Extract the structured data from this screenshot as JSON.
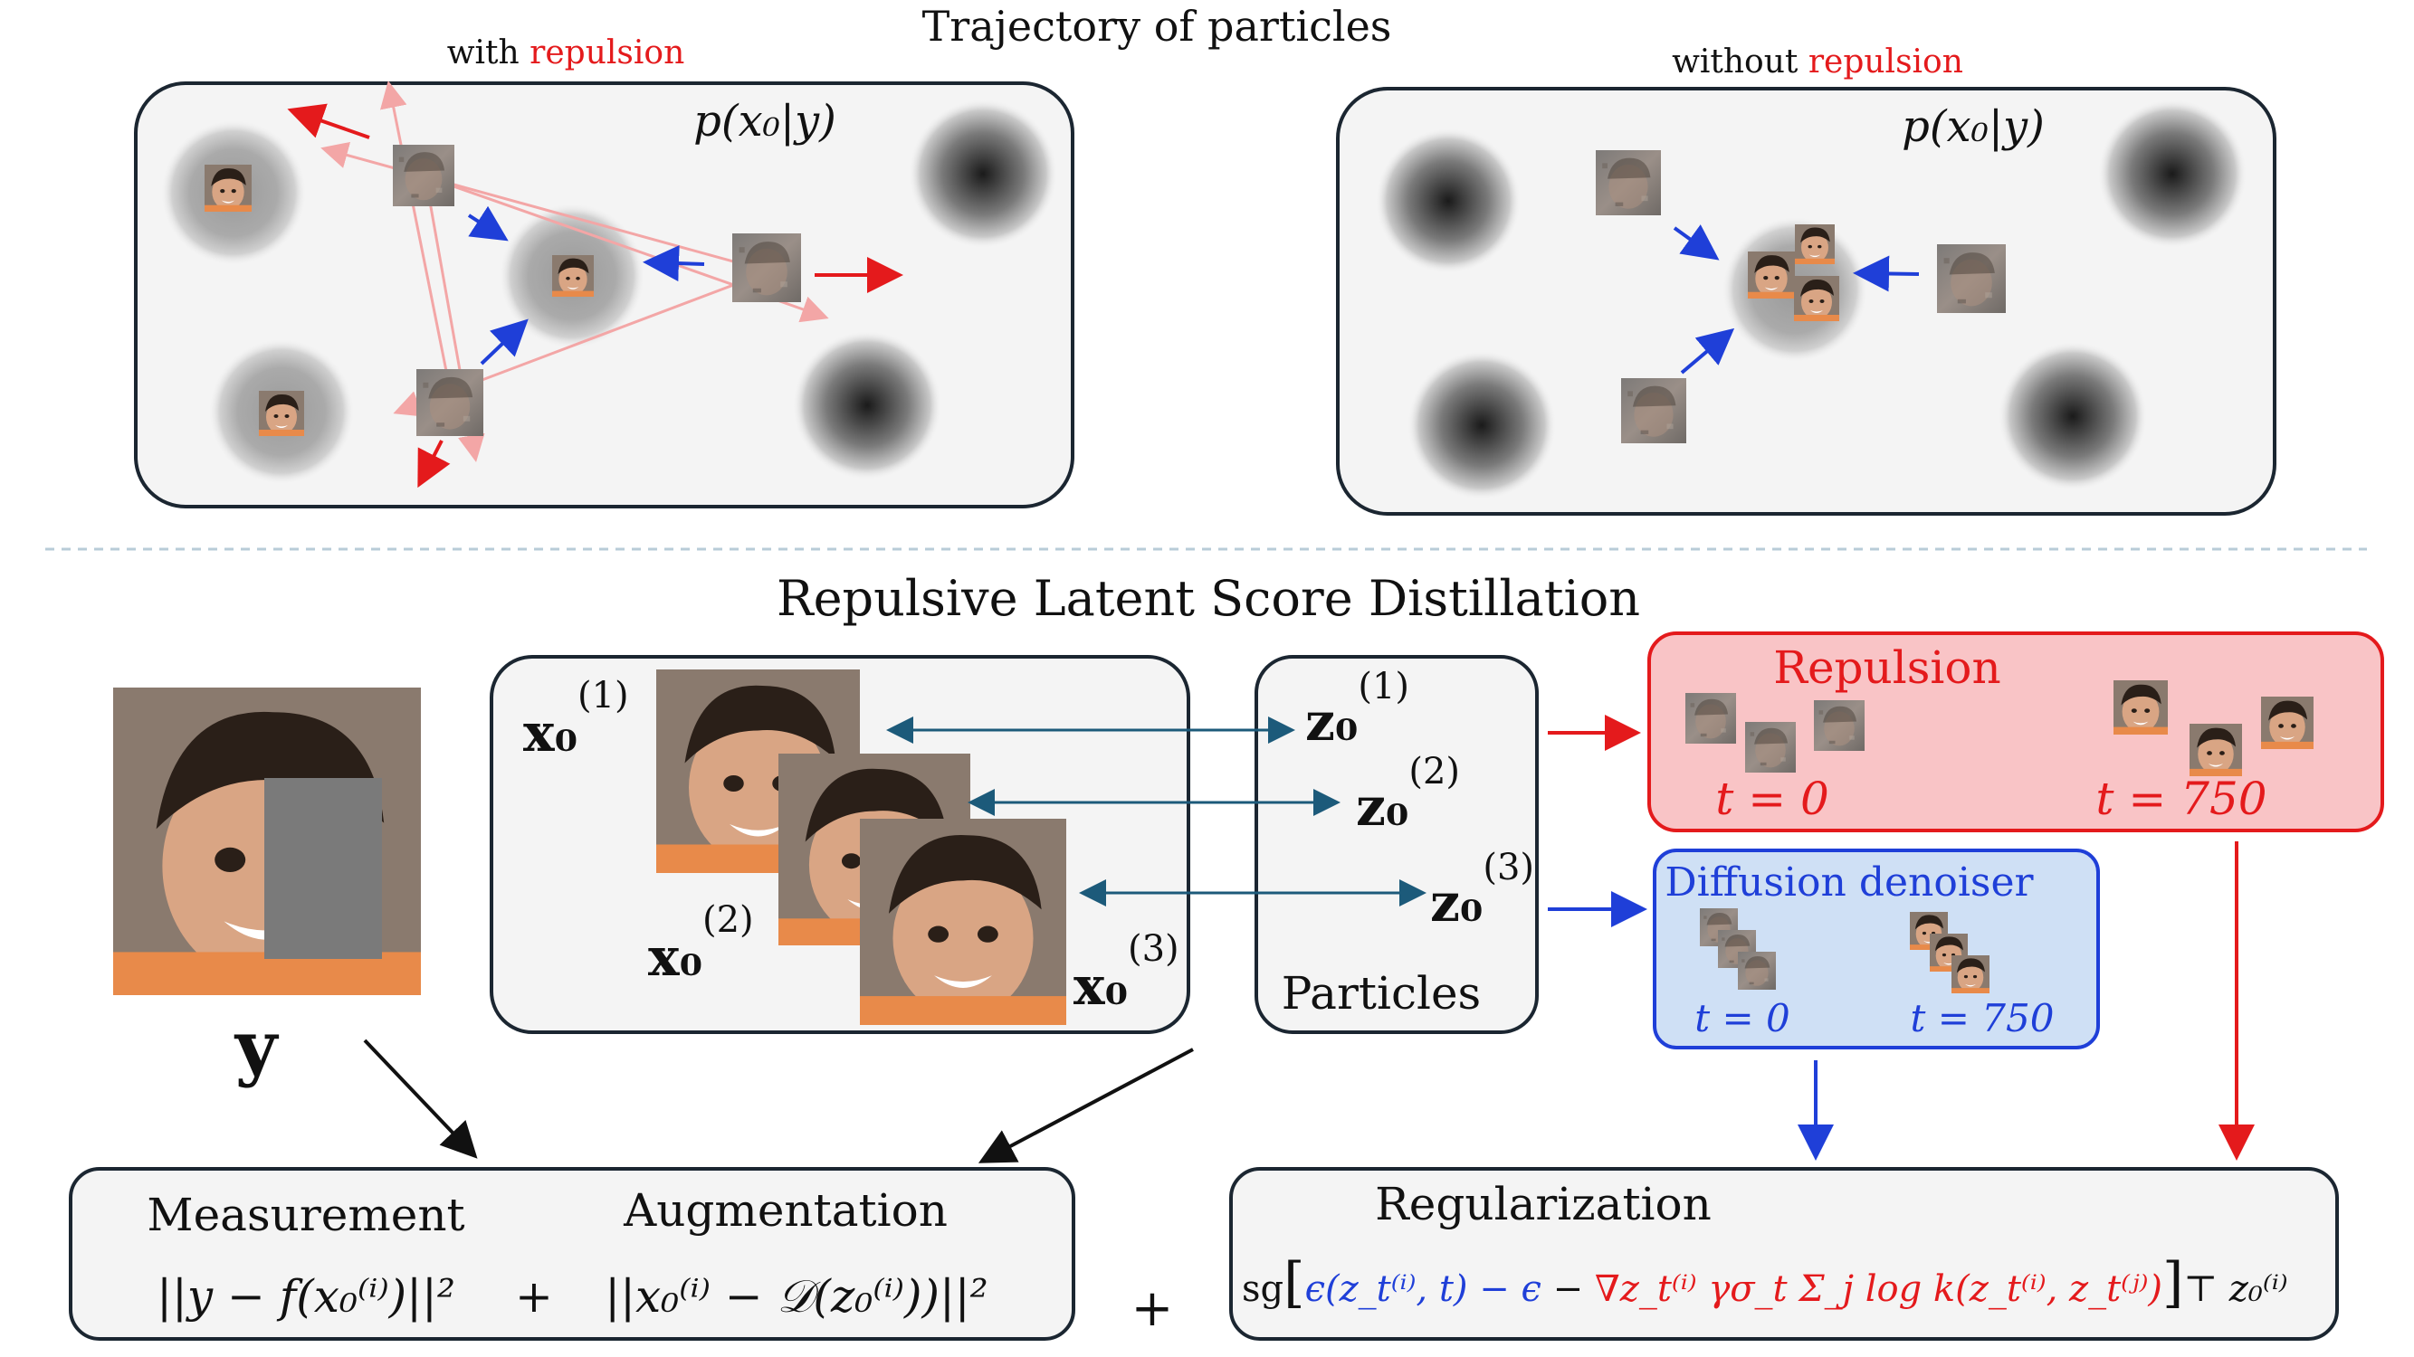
{
  "top": {
    "title": "Trajectory of particles",
    "left": {
      "label_prefix": "with ",
      "label_accent": "repulsion",
      "density": "p(x₀|y)"
    },
    "right": {
      "label_prefix": "without ",
      "label_accent": "repulsion",
      "density": "p(x₀|y)"
    }
  },
  "bottom": {
    "title": "Repulsive Latent Score Distillation",
    "observation_label": "y",
    "image_labels": [
      "x₀",
      "x₀",
      "x₀"
    ],
    "image_superscripts": [
      "(1)",
      "(2)",
      "(3)"
    ],
    "latent_labels": [
      "z₀",
      "z₀",
      "z₀"
    ],
    "latent_superscripts": [
      "(1)",
      "(2)",
      "(3)"
    ],
    "particles_label": "Particles",
    "repulsion": {
      "title": "Repulsion",
      "t0": "t = 0",
      "t750": "t = 750"
    },
    "denoiser": {
      "title": "Diffusion denoiser",
      "t0": "t = 0",
      "t750": "t = 750"
    },
    "loss": {
      "measurement_title": "Measurement",
      "augmentation_title": "Augmentation",
      "measurement_expr": "||y − f(x₀⁽ⁱ⁾)||²",
      "plus1": "+",
      "augmentation_expr": "||x₀⁽ⁱ⁾ − 𝒟(z₀⁽ⁱ⁾))||²",
      "plus2": "+",
      "regularization_title": "Regularization",
      "reg_sg": "sg",
      "reg_blue": "ϵ(z_t⁽ⁱ⁾, t) − ϵ",
      "reg_minus": " − ",
      "reg_red": "∇z_t⁽ⁱ⁾ γσ_t Σ_j log k(z_t⁽ⁱ⁾, z_t⁽ʲ⁾)",
      "reg_tail": "⊤ z₀⁽ⁱ⁾"
    }
  },
  "colors": {
    "accent_red": "#e41a1c",
    "accent_blue": "#1f3fd8",
    "arrow_teal": "#1c5a7a",
    "repulsion_fill": "#f9c4c6",
    "denoiser_fill": "#cfe0f5",
    "panel_fill": "#f4f4f4",
    "border": "#1b2631"
  }
}
